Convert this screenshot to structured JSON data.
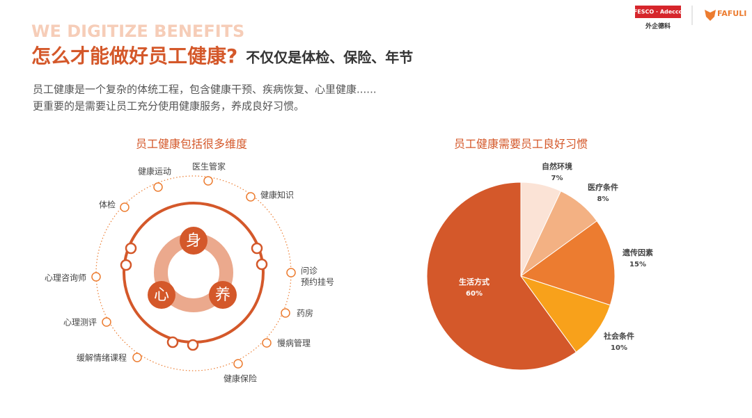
{
  "header": {
    "kicker": "WE DIGITIZE BENEFITS",
    "title": "怎么才能做好员工健康?",
    "subtitle": "不仅仅是体检、保险、年节",
    "intro": [
      "员工健康是一个复杂的体统工程，包含健康干预、疾病恢复、心里健康......",
      "更重要的是需要让员工充分使用健康服务，养成良好习惯。"
    ],
    "logo_left": "FESCO · Adecco",
    "logo_left_sub": "外企德科",
    "logo_right": "FAFULI"
  },
  "diagram": {
    "title": "员工健康包括很多维度",
    "core": [
      "身",
      "心",
      "养"
    ],
    "items": [
      "健康运动",
      "医生管家",
      "健康知识",
      "体检",
      "问诊",
      "预约挂号",
      "心理咨询师",
      "药房",
      "心理测评",
      "慢病管理",
      "缓解情绪课程",
      "健康保险"
    ]
  },
  "chart_data": {
    "type": "pie",
    "title": "员工健康需要员工良好习惯",
    "categories": [
      "自然环境",
      "医疗条件",
      "遗传因素",
      "社会条件",
      "生活方式"
    ],
    "values": [
      7,
      8,
      15,
      10,
      60
    ],
    "value_labels": [
      "7%",
      "8%",
      "15%",
      "10%",
      "60%"
    ],
    "colors": [
      "#fbe3d6",
      "#f3b183",
      "#ec7c30",
      "#f8a11b",
      "#d4582a"
    ]
  }
}
